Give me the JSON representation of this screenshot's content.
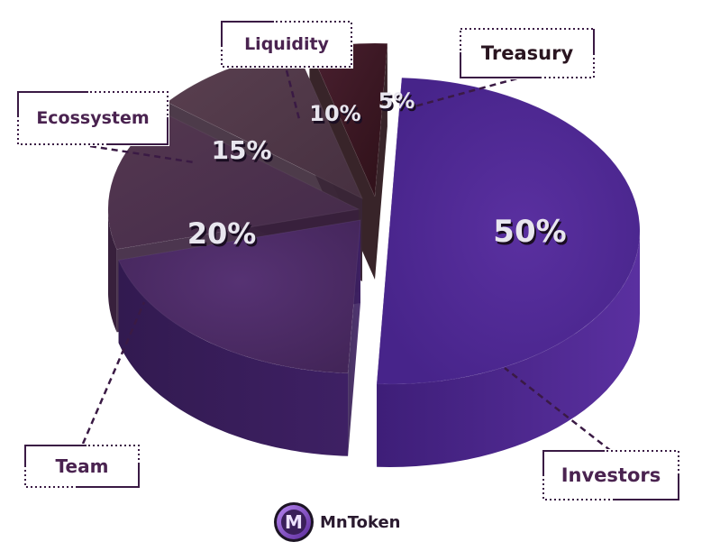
{
  "chart_data": {
    "type": "pie",
    "title": "",
    "slices": [
      {
        "name": "Investors",
        "value": 50,
        "label": "50%",
        "color": "#4e2a8c"
      },
      {
        "name": "Team",
        "value": 20,
        "label": "20%",
        "color": "#4a2a6a"
      },
      {
        "name": "Ecossystem",
        "value": 15,
        "label": "15%",
        "color": "#4a2f52"
      },
      {
        "name": "Liquidity",
        "value": 10,
        "label": "10%",
        "color": "#4b3448"
      },
      {
        "name": "Treasury",
        "value": 5,
        "label": "5%",
        "color": "#3a1822"
      }
    ]
  },
  "callouts": {
    "liquidity": "Liquidity",
    "treasury": "Treasury",
    "ecossystem": "Ecossystem",
    "team": "Team",
    "investors": "Investors"
  },
  "brand": {
    "logo_letter": "M",
    "name": "MnToken"
  },
  "colors": {
    "leader_line": "#3a1a44",
    "label_text": "#4a2350",
    "percent_text": "#e8e6ee"
  }
}
